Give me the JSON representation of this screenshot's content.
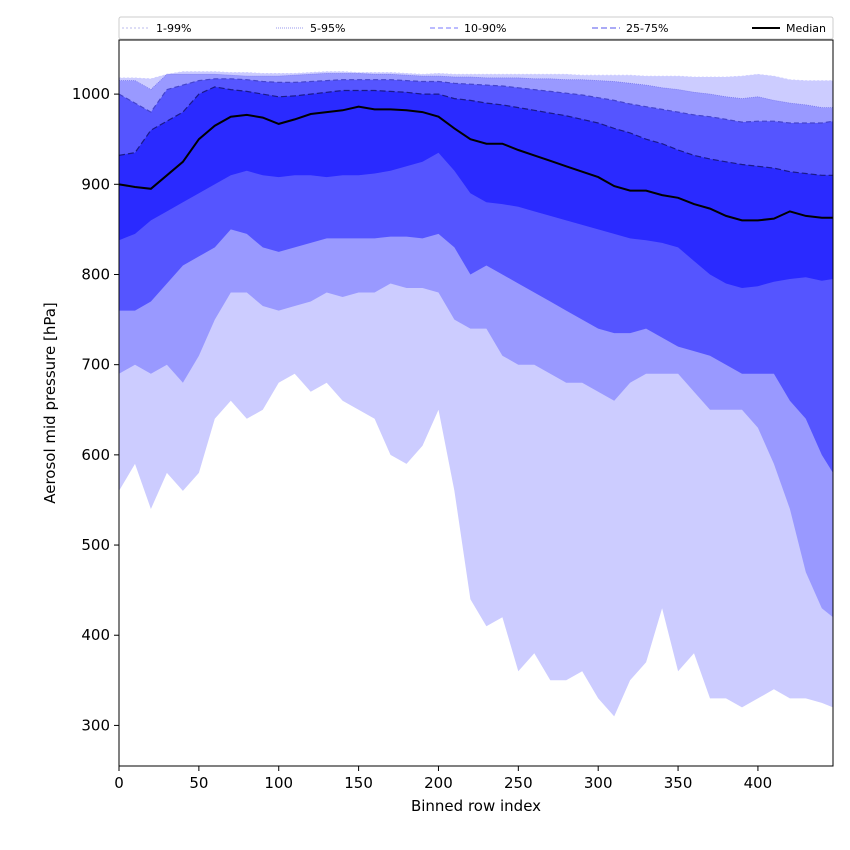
{
  "chart_data": {
    "type": "area",
    "title": "",
    "xlabel": "Binned row index",
    "ylabel": "Aerosol mid pressure [hPa]",
    "xlim": [
      0,
      447
    ],
    "ylim": [
      255,
      1060
    ],
    "xticks": [
      0,
      50,
      100,
      150,
      200,
      250,
      300,
      350,
      400
    ],
    "yticks": [
      300,
      400,
      500,
      600,
      700,
      800,
      900,
      1000
    ],
    "grid": false,
    "legend_placement": "top, spanning width",
    "x": [
      0,
      10,
      20,
      30,
      40,
      50,
      60,
      70,
      80,
      90,
      100,
      110,
      120,
      130,
      140,
      150,
      160,
      170,
      180,
      190,
      200,
      210,
      220,
      230,
      240,
      250,
      260,
      270,
      280,
      290,
      300,
      310,
      320,
      330,
      340,
      350,
      360,
      370,
      380,
      390,
      400,
      410,
      420,
      430,
      440,
      447
    ],
    "bands": [
      {
        "name": "1-99%",
        "color": "#ccccff",
        "edge": "#ccccff",
        "dash": "2,2",
        "lower": [
          560,
          590,
          540,
          580,
          560,
          580,
          640,
          660,
          640,
          650,
          680,
          690,
          670,
          680,
          660,
          650,
          640,
          600,
          590,
          610,
          650,
          560,
          440,
          410,
          420,
          360,
          380,
          350,
          350,
          360,
          330,
          310,
          350,
          370,
          430,
          360,
          380,
          330,
          330,
          320,
          330,
          340,
          330,
          330,
          325,
          320
        ],
        "upper": [
          1018,
          1018,
          1017,
          1022,
          1025,
          1025,
          1025,
          1024,
          1024,
          1023,
          1023,
          1023,
          1024,
          1025,
          1025,
          1024,
          1024,
          1024,
          1023,
          1022,
          1023,
          1022,
          1022,
          1022,
          1022,
          1022,
          1022,
          1022,
          1022,
          1021,
          1021,
          1021,
          1021,
          1020,
          1020,
          1020,
          1019,
          1019,
          1019,
          1020,
          1022,
          1020,
          1016,
          1015,
          1015,
          1015
        ]
      },
      {
        "name": "5-95%",
        "color": "#9999ff",
        "edge": "#7777ee",
        "dash": "1,1",
        "lower": [
          690,
          700,
          690,
          700,
          680,
          710,
          750,
          780,
          780,
          765,
          760,
          765,
          770,
          780,
          775,
          780,
          780,
          790,
          785,
          785,
          780,
          750,
          740,
          740,
          710,
          700,
          700,
          690,
          680,
          680,
          670,
          660,
          680,
          690,
          690,
          690,
          670,
          650,
          650,
          650,
          630,
          590,
          540,
          470,
          430,
          420
        ],
        "upper": [
          1015,
          1015,
          1005,
          1022,
          1022,
          1022,
          1022,
          1021,
          1020,
          1020,
          1020,
          1021,
          1022,
          1023,
          1023,
          1023,
          1022,
          1022,
          1021,
          1020,
          1020,
          1019,
          1019,
          1018,
          1018,
          1018,
          1017,
          1017,
          1016,
          1016,
          1015,
          1014,
          1012,
          1010,
          1007,
          1005,
          1002,
          1000,
          997,
          995,
          997,
          993,
          990,
          988,
          985,
          985
        ]
      },
      {
        "name": "10-90%",
        "color": "#5555ff",
        "edge": "#4444cc",
        "dash": "5,3",
        "lower": [
          760,
          760,
          770,
          790,
          810,
          820,
          830,
          850,
          845,
          830,
          825,
          830,
          835,
          840,
          840,
          840,
          840,
          842,
          842,
          840,
          845,
          830,
          800,
          810,
          800,
          790,
          780,
          770,
          760,
          750,
          740,
          735,
          735,
          740,
          730,
          720,
          715,
          710,
          700,
          690,
          690,
          690,
          660,
          640,
          600,
          580
        ],
        "upper": [
          1000,
          990,
          980,
          1005,
          1010,
          1015,
          1017,
          1017,
          1016,
          1014,
          1013,
          1013,
          1014,
          1015,
          1016,
          1016,
          1016,
          1016,
          1015,
          1014,
          1014,
          1012,
          1011,
          1010,
          1009,
          1007,
          1005,
          1003,
          1001,
          999,
          996,
          993,
          989,
          986,
          983,
          980,
          977,
          975,
          972,
          969,
          970,
          970,
          968,
          968,
          968,
          970
        ]
      },
      {
        "name": "25-75%",
        "color": "#2a2aff",
        "edge": "#1a1a88",
        "dash": "6,3",
        "lower": [
          838,
          845,
          860,
          870,
          880,
          890,
          900,
          910,
          915,
          910,
          908,
          910,
          910,
          908,
          910,
          910,
          912,
          915,
          920,
          925,
          935,
          915,
          890,
          880,
          878,
          875,
          870,
          865,
          860,
          855,
          850,
          845,
          840,
          838,
          835,
          830,
          815,
          800,
          790,
          785,
          787,
          792,
          795,
          797,
          793,
          795
        ],
        "upper": [
          932,
          935,
          960,
          970,
          980,
          1000,
          1008,
          1005,
          1003,
          1000,
          997,
          998,
          1000,
          1002,
          1004,
          1004,
          1004,
          1003,
          1002,
          1000,
          1000,
          995,
          993,
          990,
          988,
          985,
          982,
          979,
          976,
          972,
          968,
          962,
          957,
          950,
          945,
          938,
          932,
          928,
          925,
          922,
          920,
          918,
          914,
          912,
          910,
          910
        ]
      }
    ],
    "series": [
      {
        "name": "Median",
        "color": "#000000",
        "values": [
          900,
          897,
          895,
          910,
          925,
          950,
          965,
          975,
          977,
          974,
          967,
          972,
          978,
          980,
          982,
          986,
          983,
          983,
          982,
          980,
          975,
          962,
          950,
          945,
          945,
          938,
          932,
          926,
          920,
          914,
          908,
          898,
          893,
          893,
          888,
          885,
          878,
          873,
          865,
          860,
          860,
          862,
          870,
          865,
          863,
          863
        ]
      }
    ],
    "legend_entries": [
      {
        "label": "1-99%",
        "color": "#bbbbee",
        "dash": "2,2"
      },
      {
        "label": "5-95%",
        "color": "#9999ee",
        "dash": "1,1"
      },
      {
        "label": "10-90%",
        "color": "#7777ff",
        "dash": "5,3"
      },
      {
        "label": "25-75%",
        "color": "#5555ee",
        "dash": "6,3"
      },
      {
        "label": "Median",
        "color": "#000000",
        "dash": ""
      }
    ]
  }
}
